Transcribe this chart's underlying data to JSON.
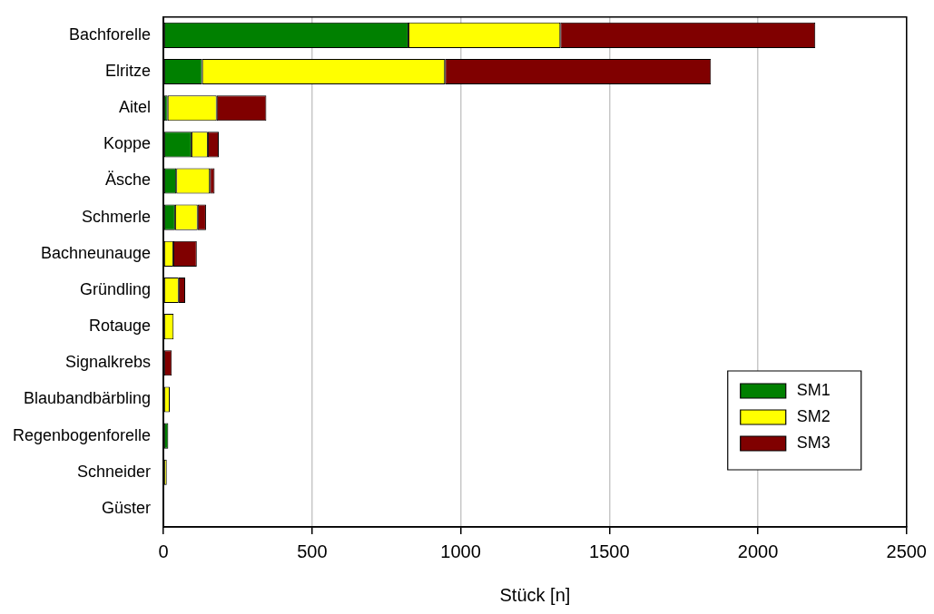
{
  "chart_data": {
    "type": "bar",
    "orientation": "horizontal",
    "stacked": true,
    "xlabel": "Stück [n]",
    "categories": [
      "Bachforelle",
      "Elritze",
      "Aitel",
      "Koppe",
      "Äsche",
      "Schmerle",
      "Bachneunauge",
      "Gründling",
      "Rotauge",
      "Signalkrebs",
      "Blaubandbärbling",
      "Regenbogenforelle",
      "Schneider",
      "Güster"
    ],
    "series": [
      {
        "name": "SM1",
        "color": "#008000",
        "values": [
          824,
          130,
          14,
          94,
          43,
          39,
          0,
          0,
          0,
          0,
          0,
          16,
          0,
          0
        ]
      },
      {
        "name": "SM2",
        "color": "#ffff00",
        "values": [
          511,
          817,
          165,
          55,
          113,
          76,
          33,
          51,
          34,
          0,
          21,
          0,
          11,
          0
        ]
      },
      {
        "name": "SM3",
        "color": "#800000",
        "values": [
          858,
          895,
          167,
          37,
          16,
          28,
          79,
          22,
          0,
          28,
          0,
          0,
          0,
          0
        ]
      }
    ],
    "xlim": [
      0,
      2500
    ],
    "xticks": [
      0,
      500,
      1000,
      1500,
      2000,
      2500
    ],
    "grid": "x",
    "legend": "bottom right"
  }
}
